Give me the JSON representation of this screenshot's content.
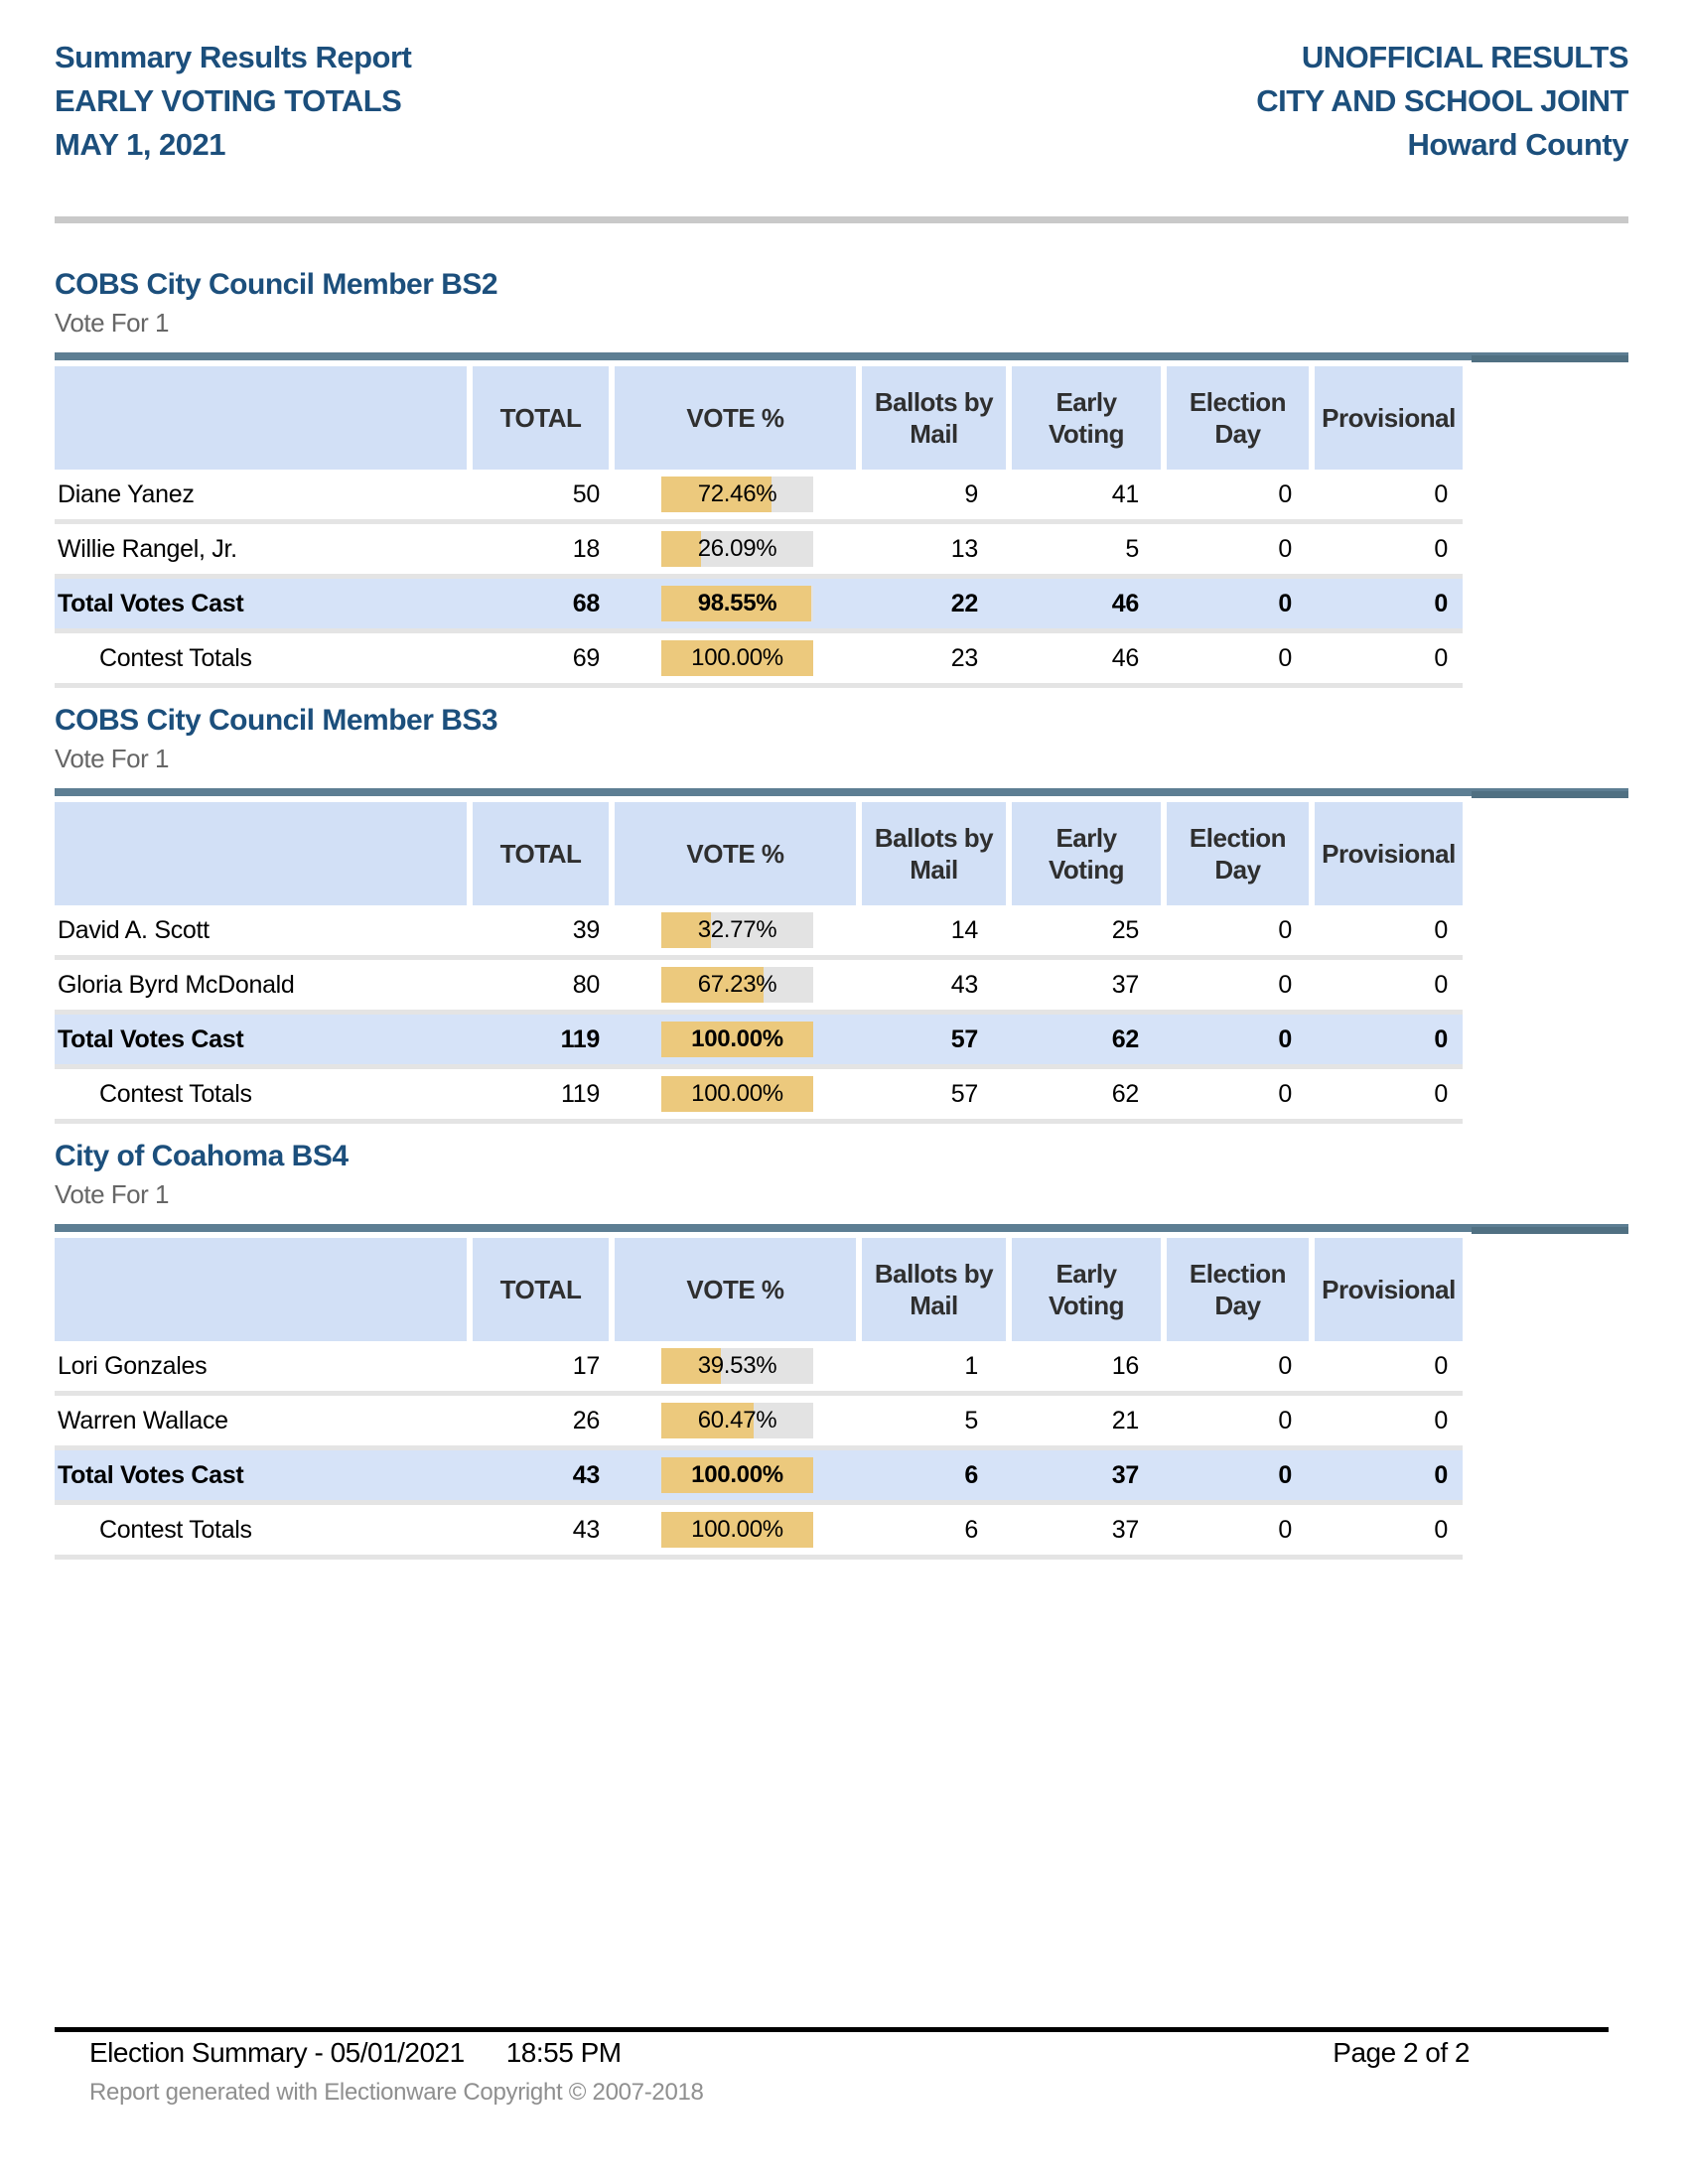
{
  "header": {
    "left_lines": [
      "Summary Results Report",
      "EARLY VOTING TOTALS",
      "MAY 1, 2021"
    ],
    "right_lines": [
      "UNOFFICIAL RESULTS",
      "CITY AND SCHOOL JOINT",
      "Howard County"
    ]
  },
  "columns": [
    "",
    "TOTAL",
    "VOTE %",
    "Ballots by Mail",
    "Early Voting",
    "Election Day",
    "Provisional"
  ],
  "contests": [
    {
      "title": "COBS City Council Member BS2",
      "vote_for": "Vote For 1",
      "rows": [
        {
          "name": "Diane Yanez",
          "total": "50",
          "vote_pct": "72.46%",
          "ballots_by_mail": "9",
          "early_voting": "41",
          "election_day": "0",
          "provisional": "0"
        },
        {
          "name": "Willie Rangel, Jr.",
          "total": "18",
          "vote_pct": "26.09%",
          "ballots_by_mail": "13",
          "early_voting": "5",
          "election_day": "0",
          "provisional": "0"
        },
        {
          "name": "Total Votes Cast",
          "total": "68",
          "vote_pct": "98.55%",
          "ballots_by_mail": "22",
          "early_voting": "46",
          "election_day": "0",
          "provisional": "0"
        },
        {
          "name": "Contest Totals",
          "total": "69",
          "vote_pct": "100.00%",
          "ballots_by_mail": "23",
          "early_voting": "46",
          "election_day": "0",
          "provisional": "0"
        }
      ]
    },
    {
      "title": "COBS City Council Member BS3",
      "vote_for": "Vote For 1",
      "rows": [
        {
          "name": "David A. Scott",
          "total": "39",
          "vote_pct": "32.77%",
          "ballots_by_mail": "14",
          "early_voting": "25",
          "election_day": "0",
          "provisional": "0"
        },
        {
          "name": "Gloria Byrd McDonald",
          "total": "80",
          "vote_pct": "67.23%",
          "ballots_by_mail": "43",
          "early_voting": "37",
          "election_day": "0",
          "provisional": "0"
        },
        {
          "name": "Total Votes Cast",
          "total": "119",
          "vote_pct": "100.00%",
          "ballots_by_mail": "57",
          "early_voting": "62",
          "election_day": "0",
          "provisional": "0"
        },
        {
          "name": "Contest Totals",
          "total": "119",
          "vote_pct": "100.00%",
          "ballots_by_mail": "57",
          "early_voting": "62",
          "election_day": "0",
          "provisional": "0"
        }
      ]
    },
    {
      "title": "City of Coahoma BS4",
      "vote_for": "Vote For 1",
      "rows": [
        {
          "name": "Lori Gonzales",
          "total": "17",
          "vote_pct": "39.53%",
          "ballots_by_mail": "1",
          "early_voting": "16",
          "election_day": "0",
          "provisional": "0"
        },
        {
          "name": "Warren Wallace",
          "total": "26",
          "vote_pct": "60.47%",
          "ballots_by_mail": "5",
          "early_voting": "21",
          "election_day": "0",
          "provisional": "0"
        },
        {
          "name": "Total Votes Cast",
          "total": "43",
          "vote_pct": "100.00%",
          "ballots_by_mail": "6",
          "early_voting": "37",
          "election_day": "0",
          "provisional": "0"
        },
        {
          "name": "Contest Totals",
          "total": "43",
          "vote_pct": "100.00%",
          "ballots_by_mail": "6",
          "early_voting": "37",
          "election_day": "0",
          "provisional": "0"
        }
      ]
    }
  ],
  "footer": {
    "summary": "Election Summary - 05/01/2021",
    "time": "18:55 PM",
    "page": "Page 2 of 2",
    "copyright": "Report generated with Electionware Copyright © 2007-2018"
  },
  "colors": {
    "title_blue": "#1c4f7c",
    "teal_bar": "#5d7e93",
    "header_cell_blue": "#d2e0f6",
    "total_row_blue": "#d6e3f8",
    "vote_bar_gold": "#ecc97d",
    "vote_bar_track": "#e3e3e3",
    "separator_gray": "#e4e4e4"
  }
}
